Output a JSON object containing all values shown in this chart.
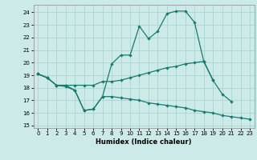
{
  "xlabel": "Humidex (Indice chaleur)",
  "bg_color": "#cceae8",
  "grid_color": "#aad4d0",
  "line_color": "#1a7a6e",
  "xlim": [
    -0.5,
    23.5
  ],
  "ylim": [
    14.8,
    24.6
  ],
  "yticks": [
    15,
    16,
    17,
    18,
    19,
    20,
    21,
    22,
    23,
    24
  ],
  "xticks": [
    0,
    1,
    2,
    3,
    4,
    5,
    6,
    7,
    8,
    9,
    10,
    11,
    12,
    13,
    14,
    15,
    16,
    17,
    18,
    19,
    20,
    21,
    22,
    23
  ],
  "line1_x": [
    0,
    1,
    2,
    3,
    4,
    5,
    6,
    7,
    8,
    9,
    10,
    11,
    12,
    13,
    14,
    15,
    16,
    17,
    18,
    19,
    20,
    21
  ],
  "line1_y": [
    19.1,
    18.8,
    18.2,
    18.1,
    17.8,
    16.2,
    16.3,
    17.3,
    19.9,
    20.6,
    20.6,
    22.9,
    21.9,
    22.5,
    23.9,
    24.1,
    24.1,
    23.2,
    20.1,
    18.6,
    17.5,
    16.9
  ],
  "line2_x": [
    0,
    1,
    2,
    3,
    4,
    5,
    6,
    7,
    8,
    9,
    10,
    11,
    12,
    13,
    14,
    15,
    16,
    17,
    18,
    19
  ],
  "line2_y": [
    19.1,
    18.8,
    18.2,
    18.2,
    18.2,
    18.2,
    18.2,
    18.5,
    18.5,
    18.6,
    18.8,
    19.0,
    19.2,
    19.4,
    19.6,
    19.7,
    19.9,
    20.0,
    20.1,
    18.6
  ],
  "line3_x": [
    0,
    1,
    2,
    3,
    4,
    5,
    6,
    7,
    8,
    9,
    10,
    11,
    12,
    13,
    14,
    15,
    16,
    17,
    18,
    19,
    20,
    21,
    22,
    23
  ],
  "line3_y": [
    19.1,
    18.8,
    18.2,
    18.2,
    17.8,
    16.2,
    16.3,
    17.3,
    17.3,
    17.2,
    17.1,
    17.0,
    16.8,
    16.7,
    16.6,
    16.5,
    16.4,
    16.2,
    16.1,
    16.0,
    15.8,
    15.7,
    15.6,
    15.5
  ]
}
